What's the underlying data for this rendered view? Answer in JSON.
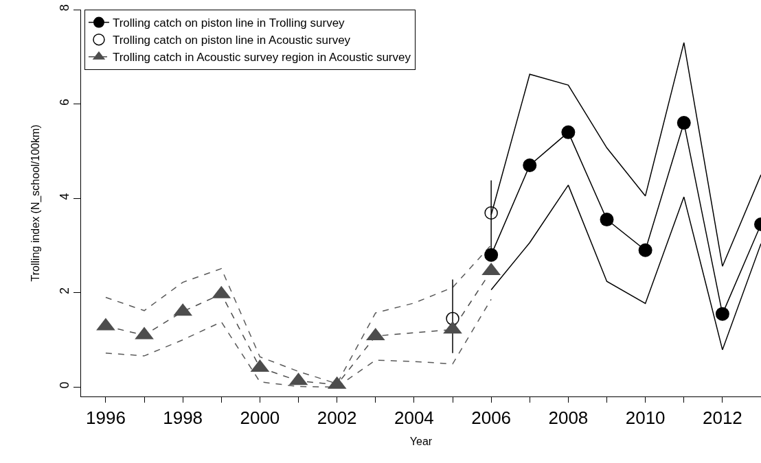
{
  "chart_data": {
    "type": "line",
    "xlabel": "Year",
    "ylabel": "Trolling index (N_school/100km)",
    "xlim": [
      1995.36,
      2013
    ],
    "ylim": [
      -0.2,
      8
    ],
    "xticks": [
      1996,
      {
        "value": 1997,
        "label": null
      },
      1998,
      {
        "value": 1999,
        "label": null
      },
      2000,
      {
        "value": 2001,
        "label": null
      },
      2002,
      {
        "value": 2003,
        "label": null
      },
      2004,
      {
        "value": 2005,
        "label": null
      },
      2006,
      {
        "value": 2007,
        "label": null
      },
      2008,
      {
        "value": 2009,
        "label": null
      },
      2010,
      {
        "value": 2011,
        "label": null
      },
      2012
    ],
    "yticks": [
      0,
      2,
      4,
      6,
      8
    ],
    "grid": false,
    "legend": "top left",
    "series": [
      {
        "type": "line",
        "color": "#000000",
        "line_style": "solid",
        "marker": "none",
        "x": [
          2006,
          2007,
          2008,
          2009,
          2010,
          2011,
          2012,
          2013
        ],
        "values": [
          3.65,
          6.63,
          6.4,
          5.07,
          4.05,
          7.3,
          2.56,
          4.5
        ]
      },
      {
        "type": "line",
        "color": "#000000",
        "line_style": "solid",
        "marker": "none",
        "x": [
          2006,
          2007,
          2008,
          2009,
          2010,
          2011,
          2012,
          2013
        ],
        "values": [
          2.06,
          3.06,
          4.28,
          2.24,
          1.77,
          4.03,
          0.79,
          3.04
        ]
      },
      {
        "type": "line",
        "color": "#595959",
        "line_style": "dashed",
        "marker": "none",
        "x": [
          1996,
          1997,
          1998,
          1999,
          2000,
          2001,
          2002,
          2003,
          2004,
          2005,
          2006
        ],
        "values": [
          1.9,
          1.62,
          2.22,
          2.51,
          0.64,
          0.33,
          0.07,
          1.57,
          1.78,
          2.11,
          3.01
        ]
      },
      {
        "type": "line",
        "color": "#595959",
        "line_style": "dashed",
        "marker": "none",
        "x": [
          1996,
          1997,
          1998,
          1999,
          2000,
          2001,
          2002,
          2003,
          2004,
          2005,
          2006
        ],
        "values": [
          0.72,
          0.66,
          1.0,
          1.38,
          0.11,
          0.01,
          0.0,
          0.57,
          0.54,
          0.49,
          1.86
        ]
      },
      {
        "name": "Trolling catch on piston line in Trolling survey",
        "color": "#000000",
        "line_style": "solid",
        "marker": "circle",
        "x": [
          2006,
          2007,
          2008,
          2009,
          2010,
          2011,
          2012,
          2013
        ],
        "values": [
          2.8,
          4.7,
          5.4,
          3.55,
          2.9,
          5.6,
          1.55,
          3.45
        ]
      },
      {
        "type": "scatter",
        "name": "Trolling catch on piston line in Acoustic survey",
        "color": "#000000",
        "marker": "circle",
        "x": [
          2005,
          2006
        ],
        "values": [
          1.45,
          3.69
        ],
        "errors": [
          [
            0.72,
            2.28
          ],
          [
            2.9,
            4.38
          ]
        ]
      },
      {
        "type": "line",
        "name": "Trolling catch in Acoustic survey region in Acoustic survey",
        "color": "#4d4d4d",
        "line_style": "dashed",
        "marker": "triangle",
        "x": [
          1996,
          1997,
          1998,
          1999,
          2000,
          2001,
          2002,
          2003,
          2005,
          2006
        ],
        "values": [
          1.29,
          1.1,
          1.6,
          1.97,
          0.41,
          0.13,
          0.05,
          1.08,
          1.22,
          2.46
        ]
      }
    ]
  }
}
